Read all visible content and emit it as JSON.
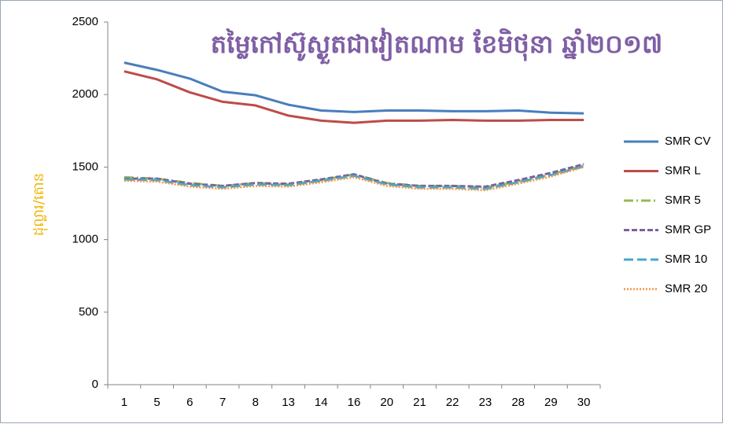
{
  "chart_data": {
    "type": "line",
    "title": "តម្លៃកៅស៊ូស្ងួតជាវៀតណាម ខែមិថុនា ឆ្នាំ២០១៧",
    "y_label": "ដុល្លារ/តោន",
    "categories": [
      "1",
      "5",
      "6",
      "7",
      "8",
      "13",
      "14",
      "16",
      "20",
      "21",
      "22",
      "23",
      "28",
      "29",
      "30"
    ],
    "ylim": [
      0,
      2500
    ],
    "yticks": [
      0,
      500,
      1000,
      1500,
      2000,
      2500
    ],
    "legend": "right",
    "series": [
      {
        "name": "SMR CV",
        "color": "#4a7ebb",
        "values": [
          2220,
          2170,
          2110,
          2020,
          1995,
          1930,
          1890,
          1880,
          1890,
          1890,
          1885,
          1885,
          1890,
          1875,
          1870
        ]
      },
      {
        "name": "SMR L",
        "color": "#be4b48",
        "values": [
          2160,
          2105,
          2015,
          1950,
          1925,
          1855,
          1820,
          1805,
          1820,
          1820,
          1825,
          1820,
          1820,
          1825,
          1825
        ]
      },
      {
        "name": "SMR 5",
        "color": "#98b954",
        "values": [
          1430,
          1420,
          1390,
          1370,
          1390,
          1380,
          1410,
          1450,
          1390,
          1370,
          1370,
          1360,
          1400,
          1450,
          1510
        ]
      },
      {
        "name": "SMR GP",
        "color": "#7d60a0",
        "values": [
          1420,
          1420,
          1385,
          1370,
          1390,
          1385,
          1415,
          1450,
          1385,
          1370,
          1370,
          1365,
          1410,
          1460,
          1520
        ]
      },
      {
        "name": "SMR 10",
        "color": "#46aac5",
        "values": [
          1415,
          1410,
          1375,
          1360,
          1380,
          1375,
          1405,
          1440,
          1380,
          1360,
          1360,
          1350,
          1395,
          1445,
          1505
        ]
      },
      {
        "name": "SMR 20",
        "color": "#f69240",
        "values": [
          1405,
          1400,
          1365,
          1350,
          1370,
          1365,
          1395,
          1430,
          1370,
          1350,
          1350,
          1340,
          1385,
          1435,
          1500
        ]
      }
    ]
  }
}
